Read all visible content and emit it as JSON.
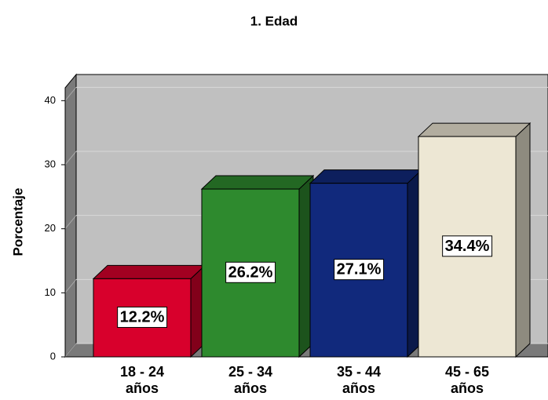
{
  "chart_data": {
    "type": "bar3d",
    "title": "1. Edad",
    "y_label": "Porcentaje",
    "categories": [
      "18 - 24 años",
      "25 - 34 años",
      "35 - 44 años",
      "45 - 65 años"
    ],
    "values": [
      12.2,
      26.2,
      27.1,
      34.4
    ],
    "value_labels": [
      "12.2%",
      "26.2%",
      "27.1%",
      "34.4%"
    ],
    "colors": [
      "#d8002c",
      "#2e8a2e",
      "#11297c",
      "#ede7d4"
    ],
    "ylim": [
      0,
      42
    ],
    "yticks": [
      0,
      10,
      20,
      30,
      40
    ],
    "grid": true
  }
}
